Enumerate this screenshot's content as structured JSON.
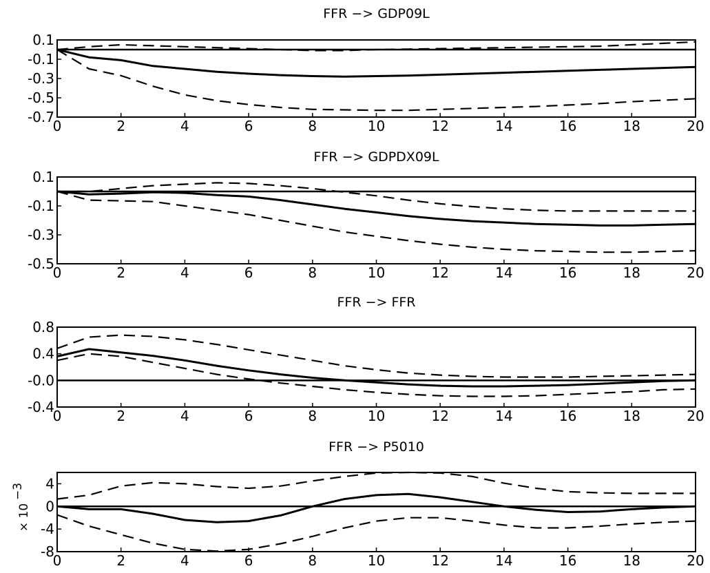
{
  "chart_data": [
    {
      "type": "line",
      "title": "FFR −> GDP09L",
      "x_ticks": [
        "0",
        "2",
        "4",
        "6",
        "8",
        "10",
        "12",
        "14",
        "16",
        "18",
        "20"
      ],
      "y_ticks": [
        "0.1",
        "-0.1",
        "-0.3",
        "-0.5",
        "-0.7"
      ],
      "xlim": [
        0,
        20
      ],
      "ylim": [
        -0.7,
        0.1
      ],
      "zero_line": 0,
      "x": [
        0,
        1,
        2,
        3,
        4,
        5,
        6,
        7,
        8,
        9,
        10,
        11,
        12,
        13,
        14,
        15,
        16,
        17,
        18,
        19,
        20
      ],
      "series": [
        {
          "style": "solid",
          "values": [
            0,
            -0.08,
            -0.11,
            -0.17,
            -0.2,
            -0.23,
            -0.25,
            -0.265,
            -0.275,
            -0.28,
            -0.275,
            -0.27,
            -0.26,
            -0.25,
            -0.24,
            -0.23,
            -0.22,
            -0.21,
            -0.2,
            -0.19,
            -0.18
          ]
        },
        {
          "style": "dashed",
          "values": [
            0,
            0.03,
            0.05,
            0.04,
            0.03,
            0.02,
            0.01,
            0.0,
            -0.01,
            -0.01,
            0.0,
            0.005,
            0.01,
            0.015,
            0.02,
            0.025,
            0.03,
            0.035,
            0.05,
            0.065,
            0.08
          ]
        },
        {
          "style": "dashed",
          "values": [
            0,
            -0.2,
            -0.27,
            -0.38,
            -0.47,
            -0.53,
            -0.57,
            -0.6,
            -0.62,
            -0.625,
            -0.63,
            -0.63,
            -0.62,
            -0.61,
            -0.6,
            -0.59,
            -0.575,
            -0.56,
            -0.54,
            -0.525,
            -0.51
          ]
        }
      ]
    },
    {
      "type": "line",
      "title": "FFR −> GDPDX09L",
      "x_ticks": [
        "0",
        "2",
        "4",
        "6",
        "8",
        "10",
        "12",
        "14",
        "16",
        "18",
        "20"
      ],
      "y_ticks": [
        "0.1",
        "-0.1",
        "-0.3",
        "-0.5"
      ],
      "xlim": [
        0,
        20
      ],
      "ylim": [
        -0.5,
        0.1
      ],
      "zero_line": 0,
      "x": [
        0,
        1,
        2,
        3,
        4,
        5,
        6,
        7,
        8,
        9,
        10,
        11,
        12,
        13,
        14,
        15,
        16,
        17,
        18,
        19,
        20
      ],
      "series": [
        {
          "style": "solid",
          "values": [
            0,
            -0.02,
            -0.015,
            -0.005,
            -0.01,
            -0.025,
            -0.035,
            -0.06,
            -0.09,
            -0.12,
            -0.145,
            -0.17,
            -0.19,
            -0.205,
            -0.215,
            -0.225,
            -0.23,
            -0.235,
            -0.235,
            -0.23,
            -0.225
          ]
        },
        {
          "style": "dashed",
          "values": [
            0,
            0.0,
            0.02,
            0.04,
            0.05,
            0.06,
            0.055,
            0.04,
            0.02,
            -0.005,
            -0.03,
            -0.06,
            -0.085,
            -0.105,
            -0.12,
            -0.13,
            -0.135,
            -0.135,
            -0.135,
            -0.135,
            -0.135
          ]
        },
        {
          "style": "dashed",
          "values": [
            0,
            -0.06,
            -0.065,
            -0.07,
            -0.1,
            -0.13,
            -0.16,
            -0.2,
            -0.24,
            -0.28,
            -0.31,
            -0.34,
            -0.365,
            -0.385,
            -0.4,
            -0.41,
            -0.415,
            -0.42,
            -0.42,
            -0.415,
            -0.41
          ]
        }
      ]
    },
    {
      "type": "line",
      "title": "FFR −> FFR",
      "x_ticks": [
        "0",
        "2",
        "4",
        "6",
        "8",
        "10",
        "12",
        "14",
        "16",
        "18",
        "20"
      ],
      "y_ticks": [
        "0.8",
        "0.4",
        "-0.0",
        "-0.4"
      ],
      "xlim": [
        0,
        20
      ],
      "ylim": [
        -0.4,
        0.8
      ],
      "zero_line": 0,
      "x": [
        0,
        1,
        2,
        3,
        4,
        5,
        6,
        7,
        8,
        9,
        10,
        11,
        12,
        13,
        14,
        15,
        16,
        17,
        18,
        19,
        20
      ],
      "series": [
        {
          "style": "solid",
          "values": [
            0.36,
            0.47,
            0.42,
            0.37,
            0.3,
            0.22,
            0.15,
            0.09,
            0.04,
            0.0,
            -0.03,
            -0.06,
            -0.08,
            -0.09,
            -0.09,
            -0.08,
            -0.07,
            -0.05,
            -0.03,
            -0.01,
            0.0
          ]
        },
        {
          "style": "dashed",
          "values": [
            0.48,
            0.65,
            0.68,
            0.66,
            0.61,
            0.54,
            0.46,
            0.38,
            0.3,
            0.22,
            0.16,
            0.11,
            0.08,
            0.06,
            0.05,
            0.05,
            0.05,
            0.06,
            0.07,
            0.08,
            0.09
          ]
        },
        {
          "style": "dashed",
          "values": [
            0.3,
            0.4,
            0.36,
            0.27,
            0.18,
            0.09,
            0.02,
            -0.04,
            -0.09,
            -0.14,
            -0.18,
            -0.21,
            -0.23,
            -0.24,
            -0.24,
            -0.23,
            -0.21,
            -0.19,
            -0.17,
            -0.14,
            -0.13
          ]
        }
      ]
    },
    {
      "type": "line",
      "title": "FFR −> P5010",
      "x_ticks": [
        "0",
        "2",
        "4",
        "6",
        "8",
        "10",
        "12",
        "14",
        "16",
        "18",
        "20"
      ],
      "y_ticks": [
        "4",
        "0",
        "-4",
        "-8"
      ],
      "y_multiplier": "× 10",
      "y_multiplier_exp": "−3",
      "xlim": [
        0,
        20
      ],
      "ylim": [
        -8,
        6
      ],
      "zero_line": 0,
      "x": [
        0,
        1,
        2,
        3,
        4,
        5,
        6,
        7,
        8,
        9,
        10,
        11,
        12,
        13,
        14,
        15,
        16,
        17,
        18,
        19,
        20
      ],
      "series": [
        {
          "style": "solid",
          "values": [
            0,
            -0.5,
            -0.5,
            -1.3,
            -2.4,
            -2.8,
            -2.6,
            -1.6,
            0.0,
            1.3,
            2.0,
            2.2,
            1.6,
            0.8,
            0.0,
            -0.6,
            -1.0,
            -0.9,
            -0.5,
            -0.2,
            0.0
          ]
        },
        {
          "style": "dashed",
          "values": [
            1.3,
            2.0,
            3.6,
            4.2,
            4.0,
            3.5,
            3.2,
            3.6,
            4.5,
            5.3,
            5.9,
            6.0,
            5.9,
            5.3,
            4.1,
            3.2,
            2.6,
            2.4,
            2.3,
            2.3,
            2.3
          ]
        },
        {
          "style": "dashed",
          "values": [
            -1.5,
            -3.5,
            -5.0,
            -6.5,
            -7.6,
            -7.9,
            -7.6,
            -6.6,
            -5.3,
            -3.8,
            -2.6,
            -2.0,
            -2.0,
            -2.6,
            -3.3,
            -3.8,
            -3.8,
            -3.5,
            -3.1,
            -2.8,
            -2.6
          ]
        }
      ]
    }
  ]
}
